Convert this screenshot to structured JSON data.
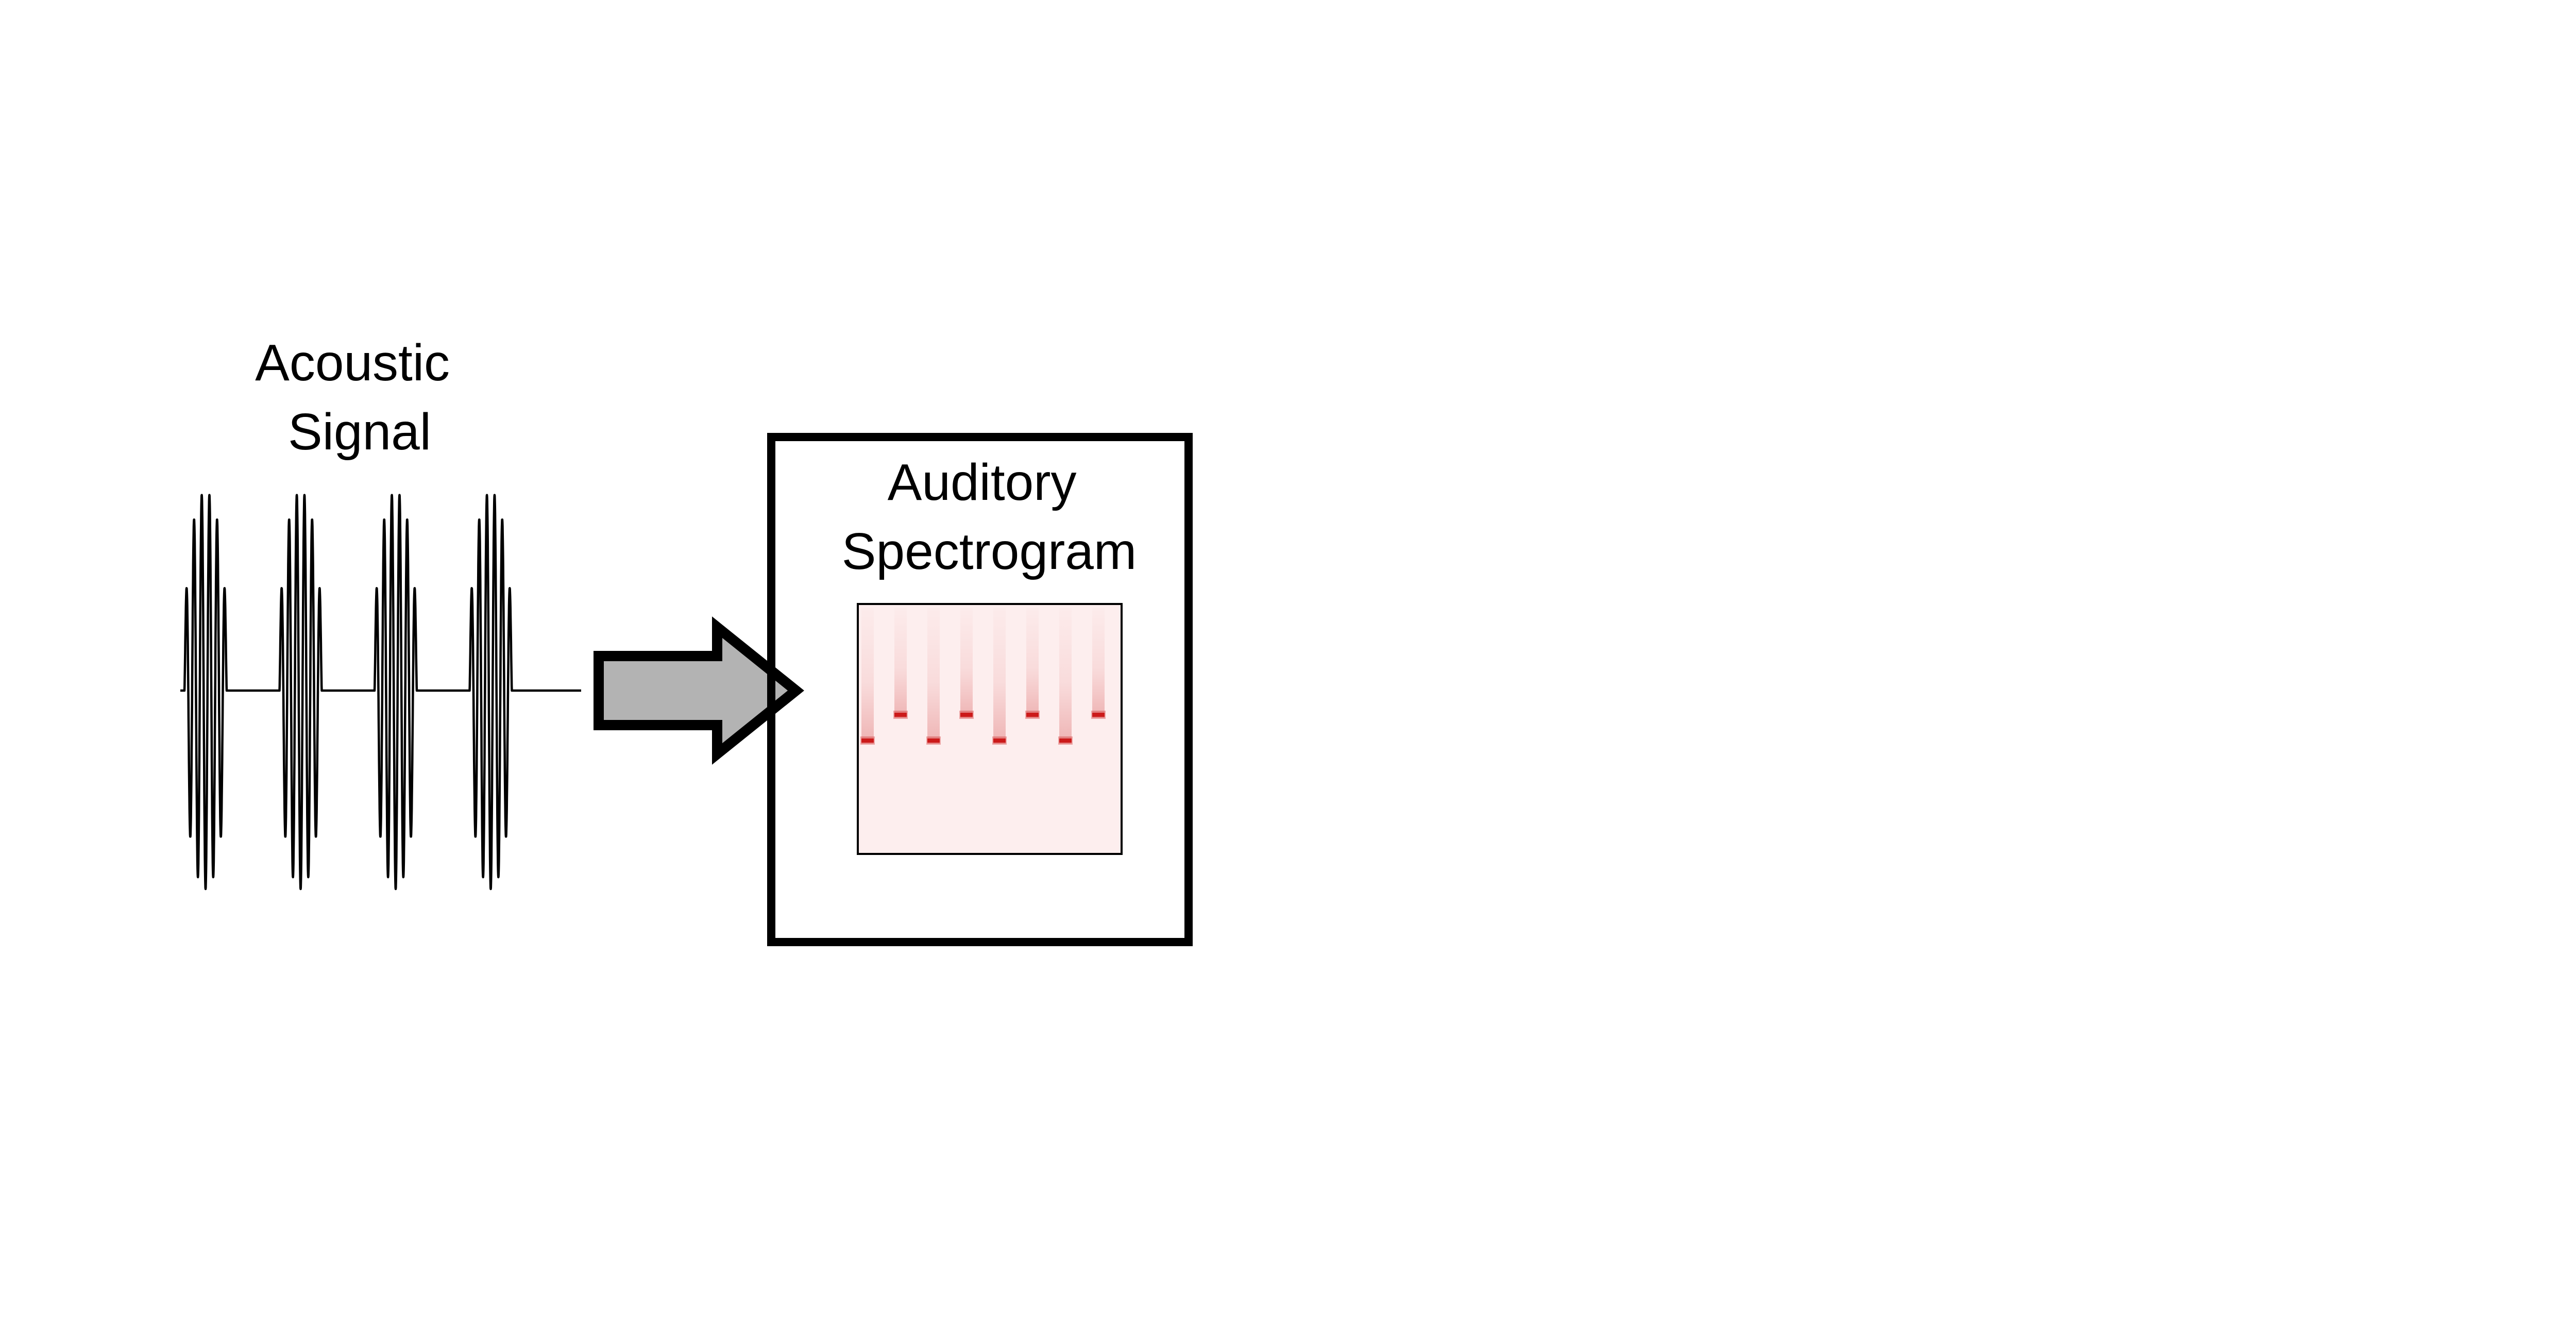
{
  "acoustic": {
    "line1": "Acoustic",
    "line2": "Signal"
  },
  "auditory": {
    "line1": "Auditory",
    "line2": "Spectrogram"
  },
  "colors": {
    "stroke": "#000000",
    "arrow_fill": "#b3b3b3",
    "spectrogram_background": "#fdeeee",
    "spectrogram_mark": "#cc1a1a"
  },
  "waveform": {
    "bursts": 4
  },
  "spectrogram": {
    "pattern": [
      "low",
      "high",
      "low",
      "high",
      "low",
      "high",
      "low",
      "high"
    ]
  }
}
